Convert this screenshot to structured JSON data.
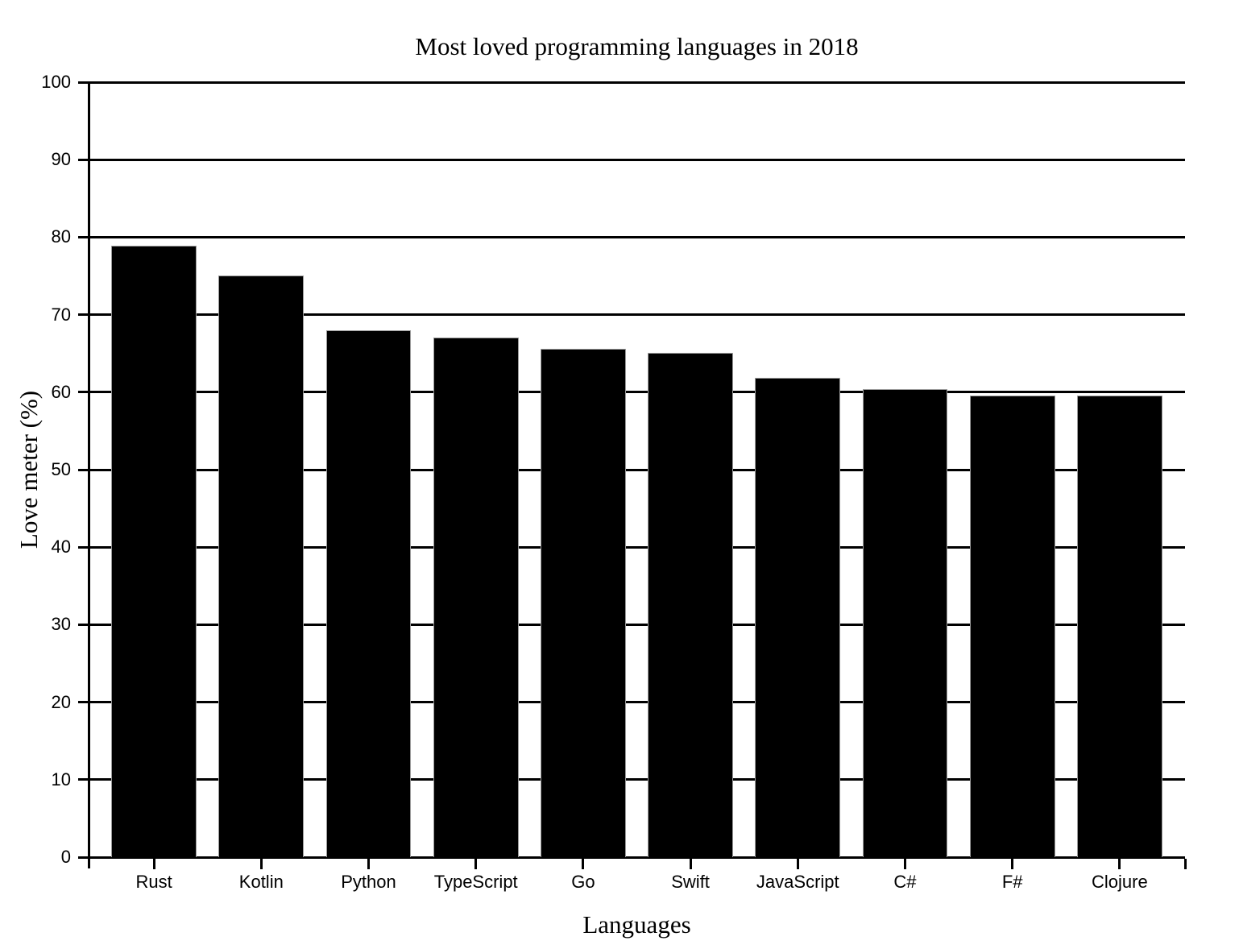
{
  "chart_data": {
    "type": "bar",
    "title": "Most loved programming languages in 2018",
    "xlabel": "Languages",
    "ylabel": "Love meter (%)",
    "categories": [
      "Rust",
      "Kotlin",
      "Python",
      "TypeScript",
      "Go",
      "Swift",
      "JavaScript",
      "C#",
      "F#",
      "Clojure"
    ],
    "values": [
      78.9,
      75.1,
      68.0,
      67.0,
      65.6,
      65.1,
      61.9,
      60.4,
      59.6,
      59.6
    ],
    "ylim": [
      0,
      100
    ],
    "y_ticks": [
      0,
      10,
      20,
      30,
      40,
      50,
      60,
      70,
      80,
      90,
      100
    ],
    "grid": true,
    "legend": "none",
    "bar_color": "#000000",
    "bar_edge_color": "#9a9a9a",
    "axis_color": "#000000",
    "background_color": "#ffffff"
  }
}
